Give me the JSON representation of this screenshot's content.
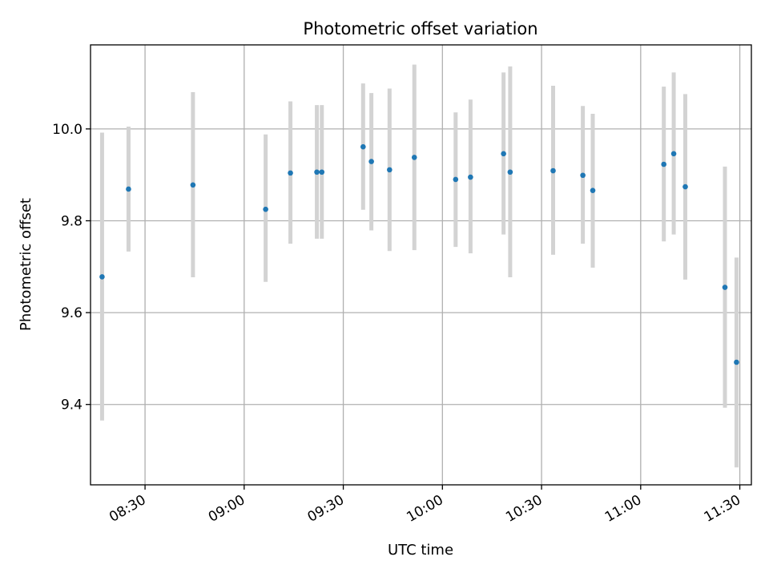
{
  "chart_data": {
    "type": "scatter",
    "title": "Photometric offset variation",
    "xlabel": "UTC time",
    "ylabel": "Photometric offset",
    "x_ticks": [
      "08:30",
      "09:00",
      "09:30",
      "10:00",
      "10:30",
      "11:00",
      "11:30"
    ],
    "y_ticks": [
      "9.4",
      "9.6",
      "9.8",
      "10.0"
    ],
    "xlim": [
      "08:13:30",
      "11:33:30"
    ],
    "ylim": [
      9.225,
      10.183
    ],
    "grid": true,
    "colors": {
      "marker": "#1f77b4",
      "errorbar": "#d3d3d3",
      "grid": "#b0b0b0"
    },
    "points": [
      {
        "x": "08:17:00",
        "y": 9.678,
        "yerr_low": 9.365,
        "yerr_high": 9.992
      },
      {
        "x": "08:25:00",
        "y": 9.869,
        "yerr_low": 9.733,
        "yerr_high": 10.005
      },
      {
        "x": "08:44:30",
        "y": 9.878,
        "yerr_low": 9.677,
        "yerr_high": 10.08
      },
      {
        "x": "09:06:30",
        "y": 9.825,
        "yerr_low": 9.667,
        "yerr_high": 9.988
      },
      {
        "x": "09:14:00",
        "y": 9.904,
        "yerr_low": 9.75,
        "yerr_high": 10.06
      },
      {
        "x": "09:22:00",
        "y": 9.906,
        "yerr_low": 9.761,
        "yerr_high": 10.052
      },
      {
        "x": "09:23:30",
        "y": 9.906,
        "yerr_low": 9.761,
        "yerr_high": 10.052
      },
      {
        "x": "09:36:00",
        "y": 9.961,
        "yerr_low": 9.824,
        "yerr_high": 10.099
      },
      {
        "x": "09:38:30",
        "y": 9.929,
        "yerr_low": 9.779,
        "yerr_high": 10.078
      },
      {
        "x": "09:44:00",
        "y": 9.911,
        "yerr_low": 9.734,
        "yerr_high": 10.088
      },
      {
        "x": "09:51:30",
        "y": 9.938,
        "yerr_low": 9.736,
        "yerr_high": 10.14
      },
      {
        "x": "10:04:00",
        "y": 9.89,
        "yerr_low": 9.743,
        "yerr_high": 10.036
      },
      {
        "x": "10:08:30",
        "y": 9.895,
        "yerr_low": 9.729,
        "yerr_high": 10.064
      },
      {
        "x": "10:18:30",
        "y": 9.946,
        "yerr_low": 9.77,
        "yerr_high": 10.123
      },
      {
        "x": "10:20:30",
        "y": 9.906,
        "yerr_low": 9.677,
        "yerr_high": 10.136
      },
      {
        "x": "10:33:30",
        "y": 9.909,
        "yerr_low": 9.726,
        "yerr_high": 10.094
      },
      {
        "x": "10:42:30",
        "y": 9.899,
        "yerr_low": 9.75,
        "yerr_high": 10.05
      },
      {
        "x": "10:45:30",
        "y": 9.866,
        "yerr_low": 9.698,
        "yerr_high": 10.033
      },
      {
        "x": "11:07:00",
        "y": 9.923,
        "yerr_low": 9.755,
        "yerr_high": 10.092
      },
      {
        "x": "11:10:00",
        "y": 9.946,
        "yerr_low": 9.77,
        "yerr_high": 10.123
      },
      {
        "x": "11:13:30",
        "y": 9.874,
        "yerr_low": 9.672,
        "yerr_high": 10.076
      },
      {
        "x": "11:25:30",
        "y": 9.655,
        "yerr_low": 9.393,
        "yerr_high": 9.918
      },
      {
        "x": "11:29:00",
        "y": 9.492,
        "yerr_low": 9.263,
        "yerr_high": 9.72
      }
    ]
  }
}
